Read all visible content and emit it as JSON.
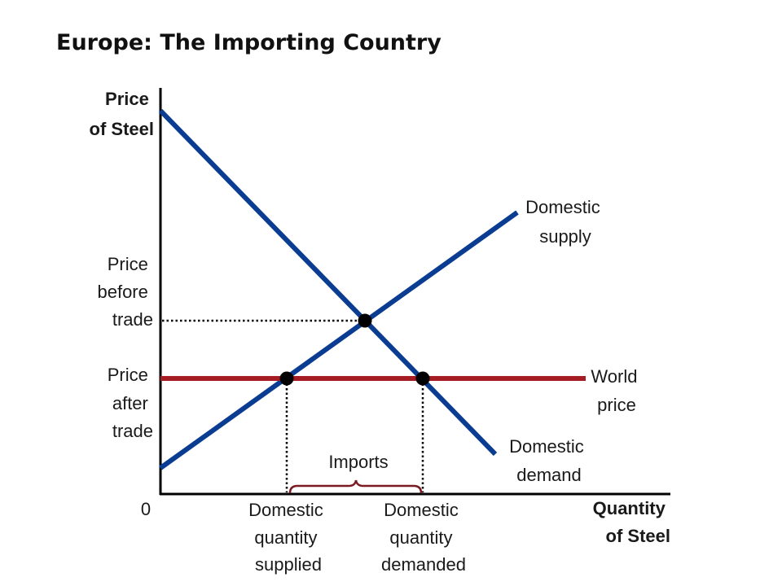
{
  "title": "Europe: The Importing Country",
  "axes": {
    "y_label": [
      "Price",
      "of Steel"
    ],
    "x_label": [
      "Quantity",
      "of Steel"
    ],
    "origin": "0"
  },
  "curves": {
    "supply": {
      "label": [
        "Domestic",
        "supply"
      ],
      "color": "#0a3d91"
    },
    "demand": {
      "label": [
        "Domestic",
        "demand"
      ],
      "color": "#0a3d91"
    },
    "world_price": {
      "label": [
        "World",
        "price"
      ],
      "color": "#a51c24"
    }
  },
  "price_labels": {
    "before_trade": [
      "Price",
      "before",
      "trade"
    ],
    "after_trade": [
      "Price",
      "after",
      "trade"
    ]
  },
  "quantity_labels": {
    "supplied": [
      "Domestic",
      "quantity",
      "supplied"
    ],
    "demanded": [
      "Domestic",
      "quantity",
      "demanded"
    ]
  },
  "imports": {
    "label": "Imports",
    "color": "#7a1a22"
  },
  "colors": {
    "axis": "#000000",
    "point": "#000000"
  }
}
